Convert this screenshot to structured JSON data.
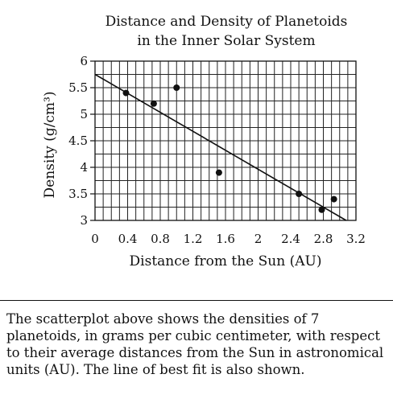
{
  "chart_data": {
    "type": "scatter",
    "title_lines": [
      "Distance and Density of Planetoids",
      "in the Inner Solar System"
    ],
    "xlabel": "Distance from the Sun (AU)",
    "ylabel": "Density (g/cm³)",
    "xlim": [
      0,
      3.2
    ],
    "ylim": [
      3,
      6
    ],
    "x_ticks": [
      "0",
      "0.4",
      "0.8",
      "1.2",
      "1.6",
      "2",
      "2.4",
      "2.8",
      "3.2"
    ],
    "y_ticks": [
      "3",
      "3.5",
      "4",
      "4.5",
      "5",
      "5.5",
      "6"
    ],
    "grid": true,
    "points": [
      {
        "x": 0.38,
        "y": 5.4
      },
      {
        "x": 0.72,
        "y": 5.2
      },
      {
        "x": 1.0,
        "y": 5.5
      },
      {
        "x": 1.52,
        "y": 3.9
      },
      {
        "x": 2.5,
        "y": 3.5
      },
      {
        "x": 2.78,
        "y": 3.2
      },
      {
        "x": 2.93,
        "y": 3.4
      }
    ],
    "best_fit_line": {
      "start": {
        "x": 0,
        "y": 5.75
      },
      "end": {
        "x": 3.08,
        "y": 3.0
      }
    }
  },
  "caption": "The scatterplot above shows the densities of 7 planetoids, in grams per cubic centimeter, with respect to their average distances from the Sun in astronomical units (AU). The line of best fit is also shown."
}
